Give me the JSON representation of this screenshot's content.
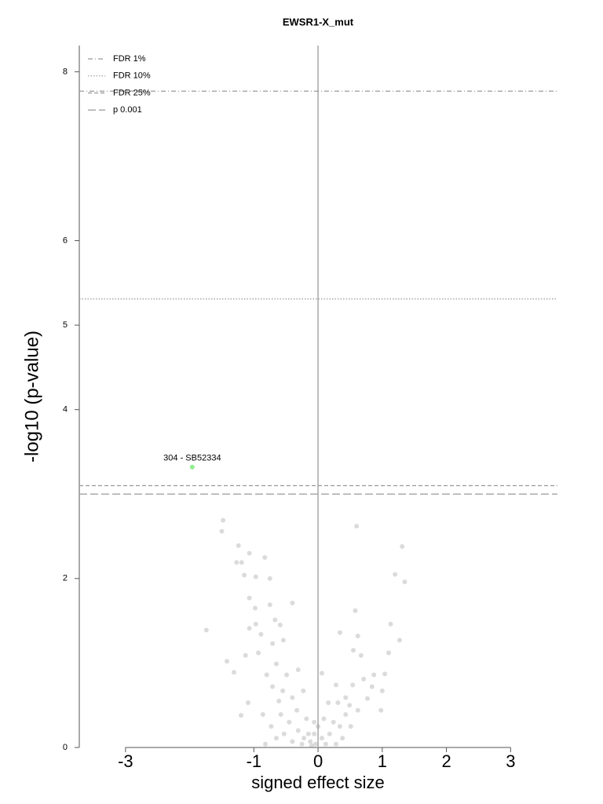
{
  "chart_data": {
    "type": "scatter",
    "title": "EWSR1-X_mut",
    "xlabel": "signed effect size",
    "ylabel": "-log10 (p-value)",
    "xlim": [
      -3.72,
      3.73
    ],
    "ylim": [
      0,
      8.31
    ],
    "xticks": [
      -3,
      -1,
      0,
      1,
      2,
      3
    ],
    "yticks": [
      0,
      2,
      4,
      5,
      6,
      8
    ],
    "legend_location": "upper left",
    "series": [
      {
        "color": "#999999",
        "x": [
          -1.48,
          -1.5,
          -1.24,
          -1.27,
          -1.19,
          -1.07,
          -0.83,
          -1.15,
          -0.97,
          -0.75,
          -1.74,
          -1.07,
          -0.98,
          -0.75,
          -1.07,
          -0.97,
          -0.89,
          -0.67,
          -0.59,
          -1.42,
          -1.31,
          -1.13,
          -0.93,
          -0.71,
          -0.54,
          -0.65,
          -0.49,
          -0.31,
          -0.4,
          -0.8,
          -0.71,
          -0.55,
          -0.4,
          -0.23,
          -0.61,
          -1.09,
          -1.2,
          -0.86,
          -0.73,
          -0.58,
          -0.45,
          -0.33,
          -0.18,
          -0.06,
          -0.65,
          -0.53,
          -0.4,
          -0.31,
          -0.22,
          -0.12,
          -0.06,
          -0.82,
          -0.25,
          -0.15,
          -0.1,
          -0.04,
          0.6,
          1.31,
          1.2,
          1.35,
          0.58,
          1.13,
          0.62,
          0.34,
          0.55,
          0.67,
          1.1,
          1.27,
          1.04,
          0.87,
          0.71,
          0.54,
          0.28,
          0.06,
          1.0,
          0.84,
          0.77,
          0.43,
          0.31,
          0.16,
          0.49,
          0.62,
          0.98,
          0.43,
          0.24,
          0.09,
          0.34,
          0.51,
          0.18,
          0.06,
          0.38,
          0.0,
          0.12,
          0.28
        ],
        "y": [
          2.69,
          2.56,
          2.39,
          2.19,
          2.19,
          2.3,
          2.25,
          2.04,
          2.02,
          2.0,
          1.39,
          1.77,
          1.65,
          1.69,
          1.41,
          1.46,
          1.34,
          1.51,
          1.45,
          1.02,
          0.89,
          1.09,
          1.12,
          1.23,
          1.27,
          0.99,
          0.86,
          0.92,
          1.71,
          0.86,
          0.72,
          0.67,
          0.59,
          0.67,
          0.55,
          0.53,
          0.38,
          0.39,
          0.25,
          0.39,
          0.3,
          0.44,
          0.34,
          0.3,
          0.11,
          0.16,
          0.07,
          0.2,
          0.11,
          0.07,
          0.16,
          0.04,
          0.04,
          0.16,
          0.02,
          0.04,
          2.62,
          2.38,
          2.05,
          1.96,
          1.62,
          1.46,
          1.32,
          1.36,
          1.15,
          1.09,
          1.12,
          1.27,
          0.87,
          0.86,
          0.81,
          0.74,
          0.74,
          0.88,
          0.67,
          0.72,
          0.58,
          0.59,
          0.53,
          0.53,
          0.5,
          0.44,
          0.44,
          0.39,
          0.3,
          0.34,
          0.25,
          0.25,
          0.16,
          0.11,
          0.11,
          0.25,
          0.04,
          0.04
        ]
      },
      {
        "color": "#90ee90",
        "x": [
          -1.96
        ],
        "y": [
          3.32
        ],
        "labels": [
          "304 - SB52334"
        ]
      }
    ],
    "hlines": [
      {
        "name": "FDR 1%",
        "value": 7.77,
        "dash": "dashdot"
      },
      {
        "name": "FDR 10%",
        "value": 5.31,
        "dash": "dotted"
      },
      {
        "name": "FDR 25%",
        "value": 3.1,
        "dash": "dashed"
      },
      {
        "name": "p 0.001",
        "value": 3.0,
        "dash": "longdash"
      }
    ],
    "vlines": [
      {
        "value": 0
      }
    ]
  }
}
